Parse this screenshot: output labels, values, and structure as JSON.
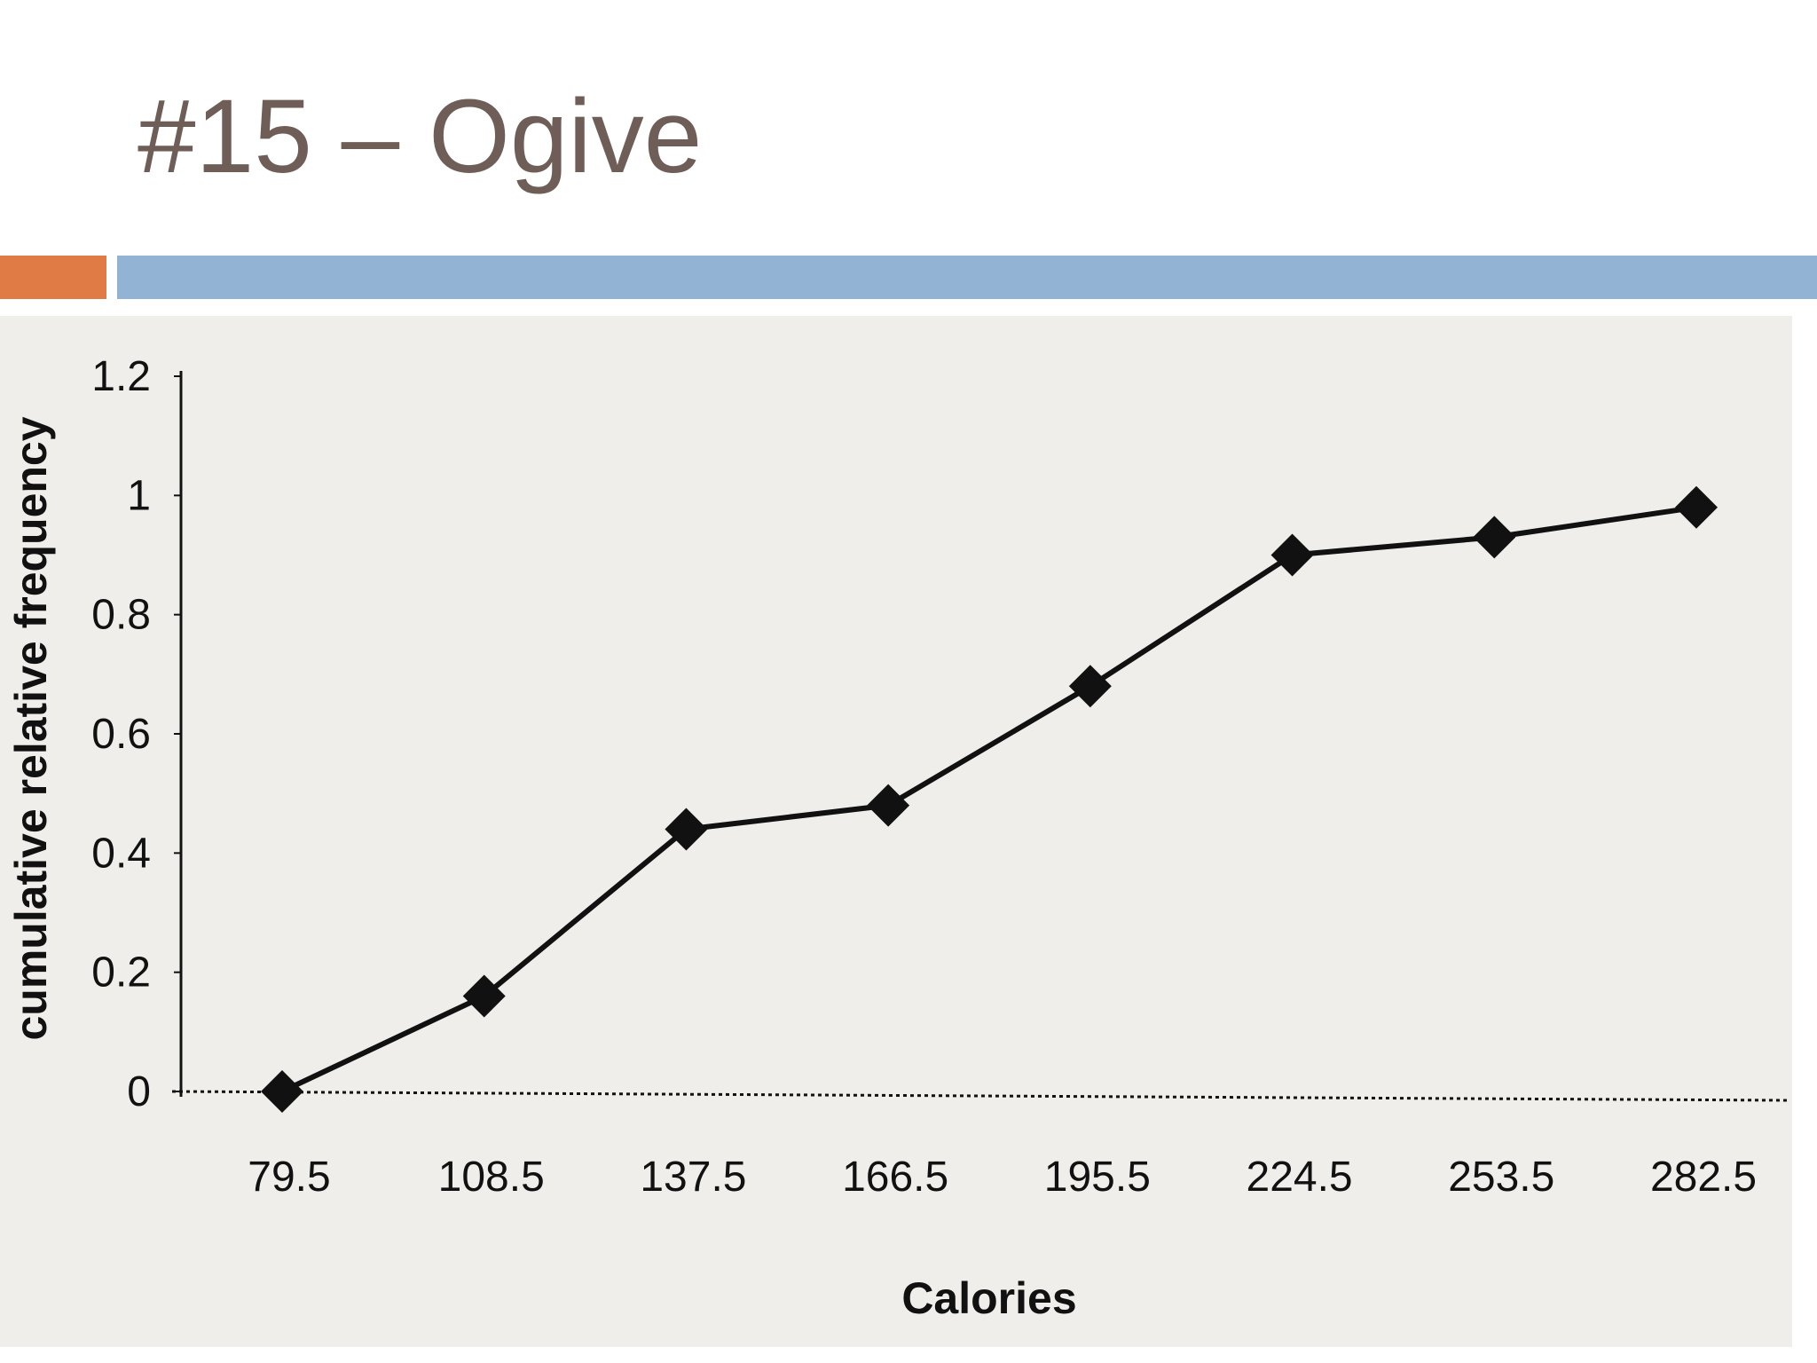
{
  "slide": {
    "title": "#15 – Ogive"
  },
  "colors": {
    "title": "#6f5e58",
    "accent_orange": "#e07b45",
    "accent_blue": "#92b3d3",
    "chart_background": "#efeeea",
    "line": "#111111"
  },
  "chart_data": {
    "type": "line",
    "title": "",
    "xlabel": "Calories",
    "ylabel": "cumulative relative frequency",
    "x": [
      "79.5",
      "108.5",
      "137.5",
      "166.5",
      "195.5",
      "224.5",
      "253.5",
      "282.5"
    ],
    "series": [
      {
        "values": [
          0,
          0.16,
          0.44,
          0.48,
          0.68,
          0.9,
          0.93,
          0.98
        ],
        "marker": "diamond"
      }
    ],
    "ylim": [
      0,
      1.2
    ],
    "yticks": [
      "0",
      "0.2",
      "0.4",
      "0.6",
      "0.8",
      "1",
      "1.2"
    ],
    "grid": false,
    "legend": "none",
    "x_axis_style": "dotted"
  }
}
